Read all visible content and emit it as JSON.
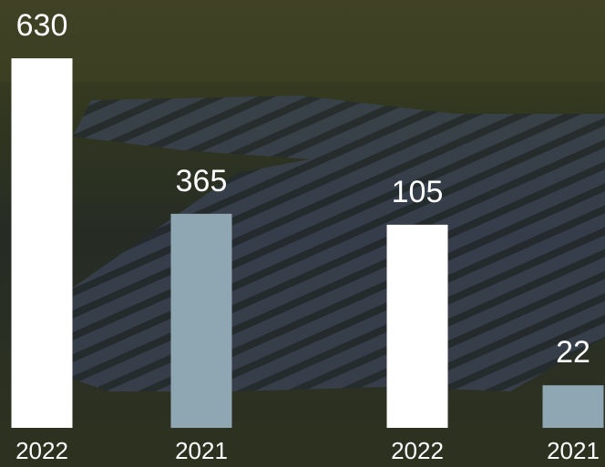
{
  "chart_data": [
    {
      "type": "bar",
      "categories": [
        "2022",
        "2021"
      ],
      "values": [
        630,
        365
      ],
      "colors": [
        "#ffffff",
        "#8fa6b3"
      ],
      "ylim": [
        0,
        700
      ]
    },
    {
      "type": "bar",
      "categories": [
        "2022",
        "2021"
      ],
      "values": [
        105,
        22
      ],
      "colors": [
        "#ffffff",
        "#8fa6b3"
      ],
      "ylim": [
        0,
        120
      ]
    }
  ]
}
